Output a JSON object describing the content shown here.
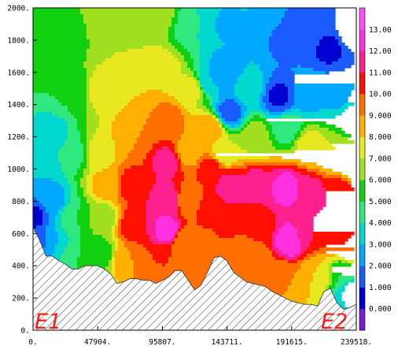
{
  "chart_data": {
    "type": "heatmap",
    "title": "",
    "xlabel": "",
    "ylabel": "",
    "xlim": [
      0,
      239518
    ],
    "ylim": [
      0,
      2000
    ],
    "x_tick_labels": [
      "0.",
      "47904.",
      "95807.",
      "143711.",
      "191615.",
      "239518."
    ],
    "y_tick_labels": [
      "0.",
      "200.",
      "400.",
      "600.",
      "800.",
      "1000.",
      "1200.",
      "1400.",
      "1600.",
      "1800.",
      "2000."
    ],
    "colorbar": {
      "labels": [
        "0.000",
        "1.000",
        "2.000",
        "3.000",
        "4.000",
        "5.000",
        "6.000",
        "7.000",
        "8.000",
        "9.000",
        "10.00",
        "11.00",
        "12.00",
        "13.00"
      ],
      "range": [
        -1,
        14
      ],
      "colors": [
        "#7a1ad6",
        "#0000d0",
        "#1a5cff",
        "#00a8ff",
        "#00d8d0",
        "#30e880",
        "#10d010",
        "#a0e020",
        "#e8e820",
        "#ffb000",
        "#ff7000",
        "#ff1000",
        "#ff2090",
        "#ff30e0",
        "#ff50ff"
      ]
    },
    "endpoints": [
      "E1",
      "E2"
    ],
    "terrain": {
      "x": [
        0,
        4800,
        9600,
        14400,
        19200,
        24000,
        28800,
        33500,
        38300,
        43100,
        47900,
        52700,
        57500,
        62300,
        67100,
        71900,
        76600,
        81400,
        86200,
        91000,
        95800,
        100600,
        105400,
        110200,
        115000,
        119800,
        124500,
        129300,
        134100,
        138900,
        143700,
        148500,
        153300,
        158100,
        162900,
        167700,
        172400,
        177200,
        182000,
        186800,
        191600,
        196400,
        201200,
        206000,
        210800,
        215600,
        220400,
        225200,
        230000,
        234700,
        239500
      ],
      "height": [
        640,
        560,
        460,
        460,
        430,
        410,
        380,
        380,
        400,
        400,
        400,
        380,
        350,
        290,
        300,
        320,
        320,
        310,
        310,
        290,
        310,
        330,
        370,
        370,
        310,
        250,
        280,
        360,
        450,
        460,
        430,
        360,
        330,
        300,
        290,
        280,
        270,
        240,
        220,
        200,
        180,
        170,
        160,
        160,
        150,
        240,
        260,
        170,
        130,
        140,
        160
      ]
    },
    "anchors": [
      {
        "x": 2000,
        "z": 1900,
        "v": 6.0
      },
      {
        "x": 6000,
        "z": 1000,
        "v": 3.0
      },
      {
        "x": 1500,
        "z": 700,
        "v": 0.8
      },
      {
        "x": 3000,
        "z": 550,
        "v": 1.5
      },
      {
        "x": 15000,
        "z": 1850,
        "v": 5.0
      },
      {
        "x": 15000,
        "z": 1200,
        "v": 3.5
      },
      {
        "x": 15000,
        "z": 800,
        "v": 2.5
      },
      {
        "x": 15000,
        "z": 550,
        "v": 3.0
      },
      {
        "x": 30000,
        "z": 1850,
        "v": 5.5
      },
      {
        "x": 30000,
        "z": 1500,
        "v": 5.0
      },
      {
        "x": 30000,
        "z": 1100,
        "v": 4.5
      },
      {
        "x": 30000,
        "z": 700,
        "v": 5.0
      },
      {
        "x": 32000,
        "z": 450,
        "v": 5.0
      },
      {
        "x": 50000,
        "z": 1900,
        "v": 7.0
      },
      {
        "x": 50000,
        "z": 1500,
        "v": 7.5
      },
      {
        "x": 48000,
        "z": 1100,
        "v": 7.5
      },
      {
        "x": 55000,
        "z": 900,
        "v": 8.5
      },
      {
        "x": 52000,
        "z": 700,
        "v": 6.5
      },
      {
        "x": 50000,
        "z": 480,
        "v": 5.5
      },
      {
        "x": 75000,
        "z": 1900,
        "v": 6.8
      },
      {
        "x": 75000,
        "z": 1500,
        "v": 8.0
      },
      {
        "x": 75000,
        "z": 1200,
        "v": 9.0
      },
      {
        "x": 72000,
        "z": 900,
        "v": 10.5
      },
      {
        "x": 75000,
        "z": 650,
        "v": 11.0
      },
      {
        "x": 70000,
        "z": 450,
        "v": 9.0
      },
      {
        "x": 95000,
        "z": 1950,
        "v": 6.5
      },
      {
        "x": 95000,
        "z": 1600,
        "v": 8.0
      },
      {
        "x": 100000,
        "z": 1300,
        "v": 9.5
      },
      {
        "x": 100000,
        "z": 1050,
        "v": 11.5
      },
      {
        "x": 100000,
        "z": 800,
        "v": 12.0
      },
      {
        "x": 100000,
        "z": 620,
        "v": 12.5
      },
      {
        "x": 95000,
        "z": 420,
        "v": 10.0
      },
      {
        "x": 115000,
        "z": 1900,
        "v": 4.5
      },
      {
        "x": 118000,
        "z": 1500,
        "v": 7.5
      },
      {
        "x": 115000,
        "z": 1100,
        "v": 8.5
      },
      {
        "x": 115000,
        "z": 800,
        "v": 9.0
      },
      {
        "x": 112000,
        "z": 550,
        "v": 9.0
      },
      {
        "x": 130000,
        "z": 1900,
        "v": 3.5
      },
      {
        "x": 130000,
        "z": 1550,
        "v": 3.0
      },
      {
        "x": 132000,
        "z": 1250,
        "v": 9.0
      },
      {
        "x": 132000,
        "z": 1000,
        "v": 10.5
      },
      {
        "x": 130000,
        "z": 750,
        "v": 10.5
      },
      {
        "x": 132000,
        "z": 520,
        "v": 9.5
      },
      {
        "x": 140000,
        "z": 1900,
        "v": 2.8
      },
      {
        "x": 142000,
        "z": 1600,
        "v": 2.0
      },
      {
        "x": 145000,
        "z": 1350,
        "v": 1.5
      },
      {
        "x": 142000,
        "z": 1100,
        "v": 7.0
      },
      {
        "x": 145000,
        "z": 900,
        "v": 11.5
      },
      {
        "x": 145000,
        "z": 650,
        "v": 11.0
      },
      {
        "x": 150000,
        "z": 500,
        "v": 9.0
      },
      {
        "x": 165000,
        "z": 1900,
        "v": 3.0
      },
      {
        "x": 160000,
        "z": 1500,
        "v": 3.5
      },
      {
        "x": 165000,
        "z": 1200,
        "v": 6.5
      },
      {
        "x": 165000,
        "z": 900,
        "v": 11.5
      },
      {
        "x": 168000,
        "z": 650,
        "v": 10.5
      },
      {
        "x": 165000,
        "z": 430,
        "v": 9.0
      },
      {
        "x": 185000,
        "z": 1800,
        "v": 1.8
      },
      {
        "x": 182000,
        "z": 1450,
        "v": 0.8
      },
      {
        "x": 188000,
        "z": 1250,
        "v": 4.5
      },
      {
        "x": 188000,
        "z": 880,
        "v": 12.5
      },
      {
        "x": 190000,
        "z": 550,
        "v": 12.8
      },
      {
        "x": 185000,
        "z": 330,
        "v": 9.0
      },
      {
        "x": 205000,
        "z": 1850,
        "v": 1.2
      },
      {
        "x": 205000,
        "z": 1450,
        "v": 2.5
      },
      {
        "x": 205000,
        "z": 1150,
        "v": 7.5
      },
      {
        "x": 205000,
        "z": 850,
        "v": 11.5
      },
      {
        "x": 205000,
        "z": 600,
        "v": 11.0
      },
      {
        "x": 210000,
        "z": 350,
        "v": 8.0
      },
      {
        "x": 220000,
        "z": 1750,
        "v": 0.8
      },
      {
        "x": 225000,
        "z": 1450,
        "v": 2.8
      },
      {
        "x": 225000,
        "z": 1100,
        "v": 7.0
      },
      {
        "x": 228000,
        "z": 850,
        "v": 11.0
      },
      {
        "x": 228000,
        "z": 600,
        "v": 10.5
      },
      {
        "x": 230000,
        "z": 350,
        "v": 5.0
      },
      {
        "x": 235000,
        "z": 1850,
        "v": 2.5
      },
      {
        "x": 237000,
        "z": 1300,
        "v": 4.5
      },
      {
        "x": 238000,
        "z": 1000,
        "v": 7.5
      },
      {
        "x": 237000,
        "z": 750,
        "v": 10.5
      },
      {
        "x": 237000,
        "z": 500,
        "v": 9.0
      },
      {
        "x": 237000,
        "z": 250,
        "v": 2.5
      }
    ]
  }
}
